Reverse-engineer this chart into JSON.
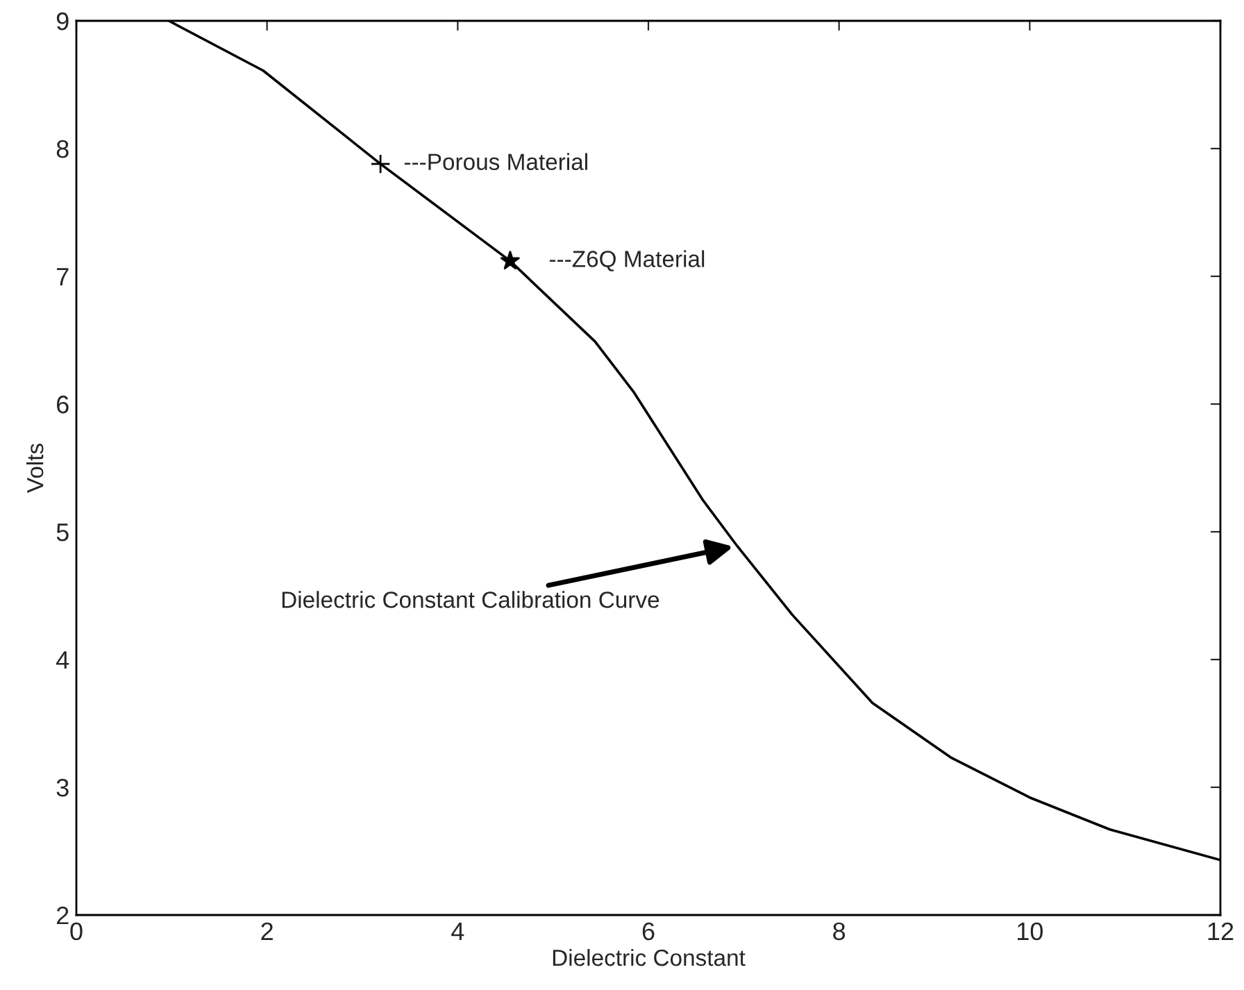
{
  "chart_data": {
    "type": "line",
    "xlabel": "Dielectric Constant",
    "ylabel": "Volts",
    "series": [
      {
        "color": "#000000",
        "marker": "none",
        "line_style": "solid",
        "x": [
          0.97,
          1.96,
          3.19,
          4.55,
          5.44,
          5.85,
          6.57,
          6.93,
          7.51,
          8.35,
          9.18,
          10.0,
          10.84,
          12.0
        ],
        "values": [
          9.0,
          8.61,
          7.88,
          7.12,
          6.49,
          6.09,
          5.25,
          4.89,
          4.35,
          3.66,
          3.23,
          2.92,
          2.67,
          2.43
        ]
      },
      {
        "type": "scatter",
        "color": "#000000",
        "marker": "cross",
        "x": [
          3.19
        ],
        "values": [
          7.88
        ]
      },
      {
        "type": "scatter",
        "color": "#000000",
        "marker": "star",
        "x": [
          4.55
        ],
        "values": [
          7.12
        ]
      }
    ],
    "annotations": [
      {
        "text": "---Porous Material",
        "x": 3.19,
        "y": 7.88
      },
      {
        "text": "---Z6Q Material",
        "x": 4.55,
        "y": 7.12
      },
      {
        "text": "Dielectric Constant Calibration Curve",
        "x": 6.93,
        "y": 4.89
      }
    ],
    "xlim": [
      0,
      12
    ],
    "xticks": [
      0,
      2,
      4,
      6,
      8,
      10,
      12
    ],
    "ylim": [
      2,
      9
    ],
    "yticks": [
      2,
      3,
      4,
      5,
      6,
      7,
      8,
      9
    ],
    "grid": false,
    "legend": false
  }
}
